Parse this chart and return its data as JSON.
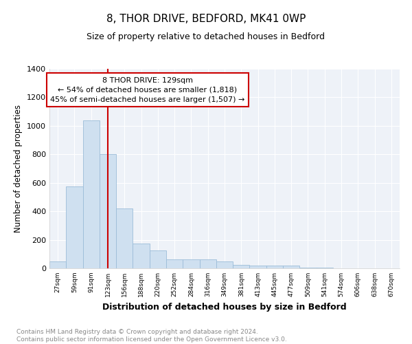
{
  "title": "8, THOR DRIVE, BEDFORD, MK41 0WP",
  "subtitle": "Size of property relative to detached houses in Bedford",
  "xlabel": "Distribution of detached houses by size in Bedford",
  "ylabel": "Number of detached properties",
  "bar_color": "#cfe0f0",
  "bar_edgecolor": "#9bbcd8",
  "annotation_box_color": "#cc0000",
  "property_line_color": "#cc0000",
  "annotation_text_line1": "8 THOR DRIVE: 129sqm",
  "annotation_text_line2": "← 54% of detached houses are smaller (1,818)",
  "annotation_text_line3": "45% of semi-detached houses are larger (1,507) →",
  "footnote": "Contains HM Land Registry data © Crown copyright and database right 2024.\nContains public sector information licensed under the Open Government Licence v3.0.",
  "categories": [
    "27sqm",
    "59sqm",
    "91sqm",
    "123sqm",
    "156sqm",
    "188sqm",
    "220sqm",
    "252sqm",
    "284sqm",
    "316sqm",
    "349sqm",
    "381sqm",
    "413sqm",
    "445sqm",
    "477sqm",
    "509sqm",
    "541sqm",
    "574sqm",
    "606sqm",
    "638sqm",
    "670sqm"
  ],
  "values": [
    50,
    575,
    1040,
    800,
    420,
    175,
    125,
    65,
    65,
    65,
    50,
    25,
    20,
    20,
    20,
    5,
    3,
    2,
    1,
    1,
    1
  ],
  "ylim": [
    0,
    1400
  ],
  "yticks": [
    0,
    200,
    400,
    600,
    800,
    1000,
    1200,
    1400
  ],
  "property_line_x": 3.0,
  "background_color": "#eef2f8"
}
